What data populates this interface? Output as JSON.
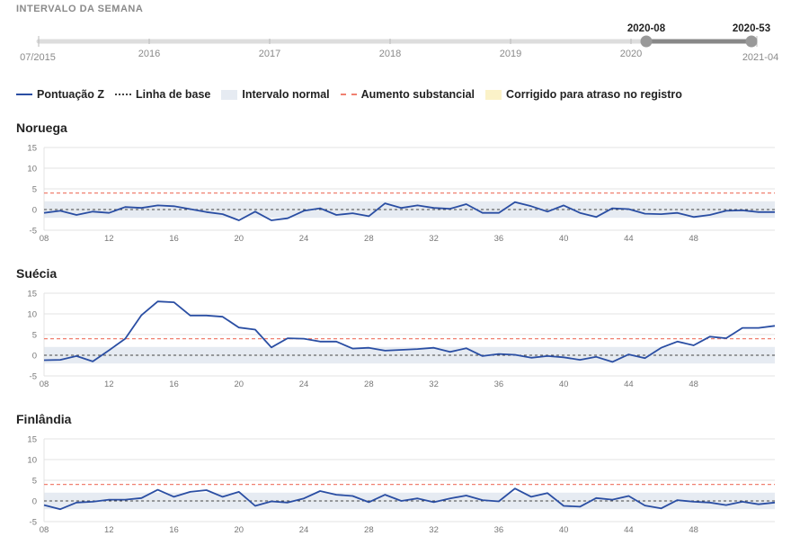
{
  "range_selector": {
    "title": "INTERVALO DA SEMANA",
    "start_label": "07/2015",
    "end_label": "2021-04",
    "year_ticks": [
      "2016",
      "2017",
      "2018",
      "2019",
      "2020"
    ],
    "selected_from": "2020-08",
    "selected_to": "2020-53"
  },
  "legend": [
    {
      "key": "zscore",
      "label": "Pontuação Z",
      "color": "#2a4ea3",
      "style": "solid"
    },
    {
      "key": "baseline",
      "label": "Linha de base",
      "color": "#444444",
      "style": "dotted"
    },
    {
      "key": "normal",
      "label": "Intervalo normal",
      "color": "#e6ebf2",
      "style": "box"
    },
    {
      "key": "substantial",
      "label": "Aumento substancial",
      "color": "#f08070",
      "style": "dashed"
    },
    {
      "key": "corrected",
      "label": "Corrigido para atraso no registro",
      "color": "#fbf2c8",
      "style": "box"
    }
  ],
  "colors": {
    "series": "#2a4ea3",
    "band": "#e6ebf2",
    "threshold": "#f08070",
    "grid": "#e3e3e3",
    "axis_text": "#777777",
    "slider_track": "#dddddd",
    "slider_selected": "#888888"
  },
  "chart_data": [
    {
      "type": "line",
      "title": "Noruega",
      "x": [
        8,
        9,
        10,
        11,
        12,
        13,
        14,
        15,
        16,
        17,
        18,
        19,
        20,
        21,
        22,
        23,
        24,
        25,
        26,
        27,
        28,
        29,
        30,
        31,
        32,
        33,
        34,
        35,
        36,
        37,
        38,
        39,
        40,
        41,
        42,
        43,
        44,
        45,
        46,
        47,
        48,
        49,
        50,
        51,
        52,
        53
      ],
      "values": [
        -0.8,
        -0.3,
        -1.3,
        -0.5,
        -0.8,
        0.6,
        0.4,
        1.0,
        0.8,
        0.1,
        -0.6,
        -1.1,
        -2.6,
        -0.5,
        -2.6,
        -2.1,
        -0.3,
        0.3,
        -1.3,
        -0.9,
        -1.6,
        1.5,
        0.4,
        1.0,
        0.4,
        0.2,
        1.3,
        -0.8,
        -0.8,
        1.8,
        0.8,
        -0.5,
        1.0,
        -0.8,
        -1.8,
        0.3,
        0.1,
        -1.0,
        -1.1,
        -0.8,
        -1.8,
        -1.3,
        -0.3,
        -0.2,
        -0.6,
        -0.6
      ],
      "baseline": 0,
      "normal_range": [
        -2,
        2
      ],
      "substantial_threshold": 4,
      "ylim": [
        -5,
        15
      ],
      "y_ticks": [
        15,
        10,
        5,
        0,
        -5
      ],
      "x_ticks": [
        "08",
        "12",
        "16",
        "20",
        "24",
        "28",
        "32",
        "36",
        "40",
        "44",
        "48"
      ]
    },
    {
      "type": "line",
      "title": "Suécia",
      "x": [
        8,
        9,
        10,
        11,
        12,
        13,
        14,
        15,
        16,
        17,
        18,
        19,
        20,
        21,
        22,
        23,
        24,
        25,
        26,
        27,
        28,
        29,
        30,
        31,
        32,
        33,
        34,
        35,
        36,
        37,
        38,
        39,
        40,
        41,
        42,
        43,
        44,
        45,
        46,
        47,
        48,
        49,
        50,
        51,
        52,
        53
      ],
      "values": [
        -1.2,
        -1.1,
        -0.2,
        -1.5,
        1.2,
        4.0,
        9.7,
        13.0,
        12.8,
        9.6,
        9.6,
        9.3,
        6.7,
        6.2,
        1.9,
        4.1,
        4.0,
        3.3,
        3.3,
        1.6,
        1.8,
        1.1,
        1.3,
        1.5,
        1.8,
        0.8,
        1.7,
        -0.2,
        0.3,
        0.1,
        -0.6,
        -0.2,
        -0.5,
        -1.1,
        -0.4,
        -1.6,
        0.2,
        -0.7,
        1.8,
        3.3,
        2.4,
        4.5,
        4.1,
        6.6,
        6.6,
        7.1
      ],
      "baseline": 0,
      "normal_range": [
        -2,
        2
      ],
      "substantial_threshold": 4,
      "ylim": [
        -5,
        15
      ],
      "y_ticks": [
        15,
        10,
        5,
        0,
        -5
      ],
      "x_ticks": [
        "08",
        "12",
        "16",
        "20",
        "24",
        "28",
        "32",
        "36",
        "40",
        "44",
        "48"
      ]
    },
    {
      "type": "line",
      "title": "Finlândia",
      "x": [
        8,
        9,
        10,
        11,
        12,
        13,
        14,
        15,
        16,
        17,
        18,
        19,
        20,
        21,
        22,
        23,
        24,
        25,
        26,
        27,
        28,
        29,
        30,
        31,
        32,
        33,
        34,
        35,
        36,
        37,
        38,
        39,
        40,
        41,
        42,
        43,
        44,
        45,
        46,
        47,
        48,
        49,
        50,
        51,
        52,
        53
      ],
      "values": [
        -1.0,
        -2.0,
        -0.4,
        -0.2,
        0.3,
        0.3,
        0.7,
        2.7,
        1.0,
        2.2,
        2.6,
        1.0,
        2.2,
        -1.2,
        -0.1,
        -0.4,
        0.6,
        2.4,
        1.5,
        1.2,
        -0.3,
        1.5,
        0.0,
        0.6,
        -0.3,
        0.6,
        1.3,
        0.2,
        -0.1,
        3.0,
        1.0,
        1.9,
        -1.2,
        -1.4,
        0.7,
        0.3,
        1.2,
        -1.1,
        -1.8,
        0.2,
        -0.2,
        -0.4,
        -1.0,
        -0.2,
        -0.8,
        -0.4
      ],
      "baseline": 0,
      "normal_range": [
        -2,
        2
      ],
      "substantial_threshold": 4,
      "ylim": [
        -5,
        15
      ],
      "y_ticks": [
        15,
        10,
        5,
        0,
        -5
      ],
      "x_ticks": [
        "08",
        "12",
        "16",
        "20",
        "24",
        "28",
        "32",
        "36",
        "40",
        "44",
        "48"
      ]
    }
  ]
}
